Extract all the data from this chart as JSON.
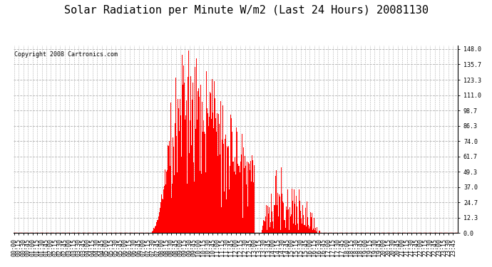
{
  "title": "Solar Radiation per Minute W/m2 (Last 24 Hours) 20081130",
  "copyright_text": "Copyright 2008 Cartronics.com",
  "background_color": "#ffffff",
  "plot_bg_color": "#ffffff",
  "bar_color": "#ff0000",
  "dashed_line_color": "#b0b0b0",
  "red_baseline_color": "#ff0000",
  "yticks": [
    0.0,
    12.3,
    24.7,
    37.0,
    49.3,
    61.7,
    74.0,
    86.3,
    98.7,
    111.0,
    123.3,
    135.7,
    148.0
  ],
  "ymax": 148.0,
  "ymin": 0.0,
  "title_fontsize": 11,
  "tick_fontsize": 6,
  "copyright_fontsize": 6
}
